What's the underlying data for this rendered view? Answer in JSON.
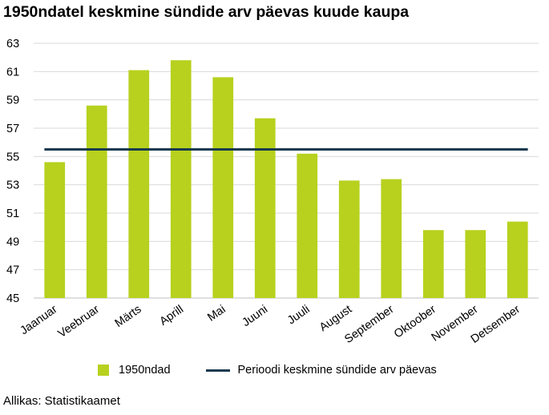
{
  "title": "1950ndatel keskmine sündide arv päevas kuude kaupa",
  "source": "Allikas: Statistikaamet",
  "colors": {
    "bar": "#b7d11e",
    "line": "#16394f",
    "grid": "#d9d9d9",
    "axis": "#bfbfbf"
  },
  "chart_data": {
    "type": "bar",
    "title": "1950ndatel keskmine sündide arv päevas kuude kaupa",
    "categories": [
      "Jaanuar",
      "Veebruar",
      "Märts",
      "Aprill",
      "Mai",
      "Juuni",
      "Juuli",
      "August",
      "September",
      "Oktoober",
      "November",
      "Detsember"
    ],
    "series": [
      {
        "name": "1950ndad",
        "type": "bar",
        "values": [
          54.6,
          58.6,
          61.1,
          61.8,
          60.6,
          57.7,
          55.2,
          53.3,
          53.4,
          49.8,
          49.8,
          50.4
        ]
      },
      {
        "name": "Perioodi keskmine sündide arv päevas",
        "type": "line",
        "values": [
          55.5,
          55.5,
          55.5,
          55.5,
          55.5,
          55.5,
          55.5,
          55.5,
          55.5,
          55.5,
          55.5,
          55.5
        ]
      }
    ],
    "ylim": [
      45,
      63
    ],
    "yticks": [
      45,
      47,
      49,
      51,
      53,
      55,
      57,
      59,
      61,
      63
    ],
    "xlabel": "",
    "ylabel": "",
    "grid": true,
    "legend": "bottom"
  }
}
